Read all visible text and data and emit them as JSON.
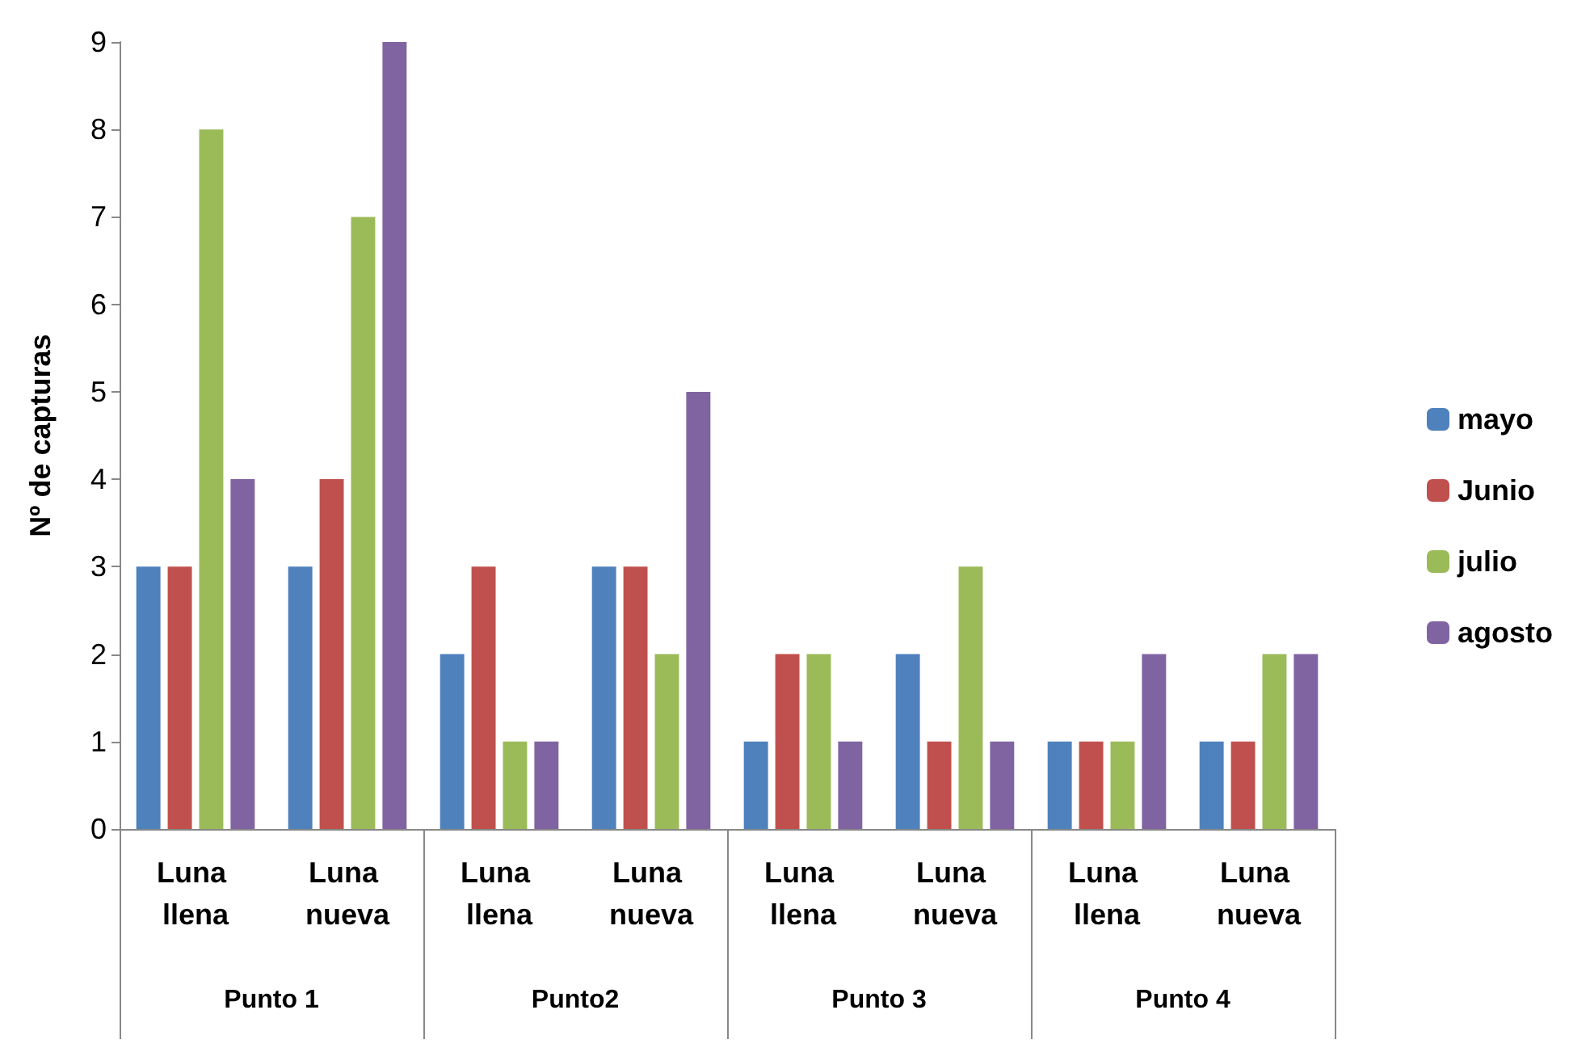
{
  "chart_data": {
    "type": "bar",
    "ylabel": "Nº de capturas",
    "categories": [
      "Luna llena",
      "Luna nueva",
      "Luna llena",
      "Luna nueva",
      "Luna llena",
      "Luna nueva",
      "Luna llena",
      "Luna nueva"
    ],
    "annotations": [
      "Punto 1",
      "Punto2",
      "Punto 3",
      "Punto 4"
    ],
    "series": [
      {
        "name": "mayo",
        "color": "#4f81bd",
        "values": [
          3,
          3,
          2,
          3,
          1,
          2,
          1,
          1
        ]
      },
      {
        "name": "Junio",
        "color": "#c0504d",
        "values": [
          3,
          4,
          3,
          3,
          2,
          1,
          1,
          1
        ]
      },
      {
        "name": "julio",
        "color": "#9bbb59",
        "values": [
          8,
          7,
          1,
          2,
          2,
          3,
          1,
          2
        ]
      },
      {
        "name": "agosto",
        "color": "#8064a2",
        "values": [
          4,
          9,
          1,
          5,
          1,
          1,
          2,
          2
        ]
      }
    ],
    "ylim": [
      0,
      9
    ],
    "yticks": [
      0,
      1,
      2,
      3,
      4,
      5,
      6,
      7,
      8,
      9
    ],
    "grid": false,
    "legend": "right"
  }
}
